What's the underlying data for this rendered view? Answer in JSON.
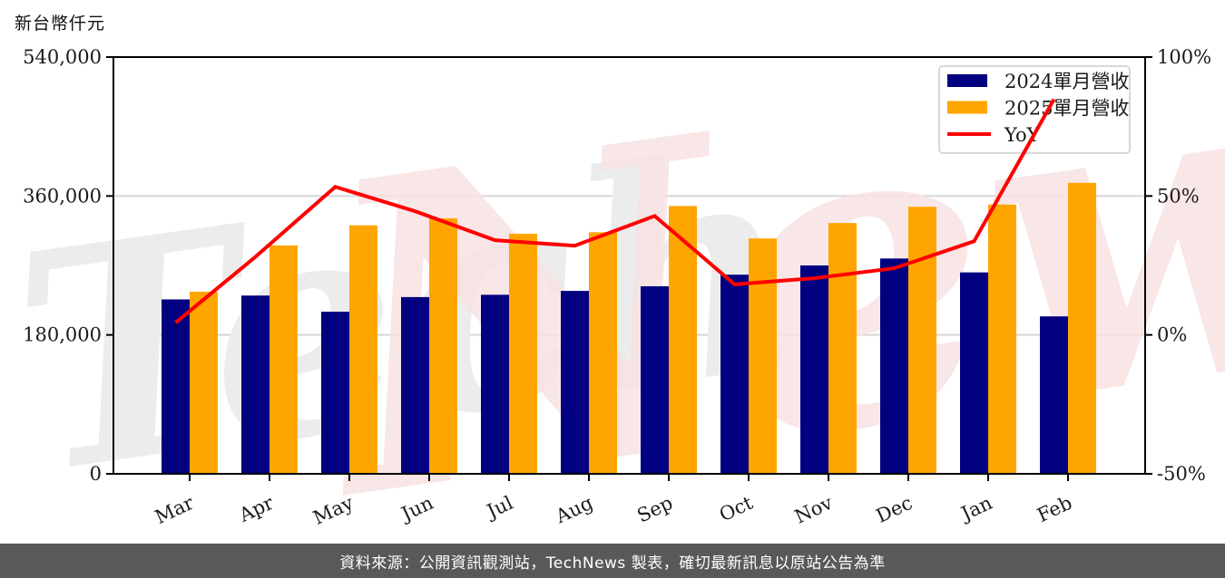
{
  "page": {
    "unit_label": "新台幣仟元",
    "footer_text": "資料來源：公開資訊觀測站，TechNews 製表，確切最新訊息以原站公告為準",
    "watermark": {
      "part1": "Tech",
      "part2": "News"
    }
  },
  "chart_data": {
    "type": "bar",
    "title": "",
    "categories": [
      "Mar",
      "Apr",
      "May",
      "Jun",
      "Jul",
      "Aug",
      "Sep",
      "Oct",
      "Nov",
      "Dec",
      "Jan",
      "Feb"
    ],
    "series": [
      {
        "name": "2024單月營收",
        "type": "bar",
        "color": "#000080",
        "axis": "left",
        "values": [
          226000,
          231000,
          210000,
          229000,
          232000,
          237000,
          243000,
          258000,
          270000,
          279000,
          261000,
          204000
        ]
      },
      {
        "name": "2025單月營收",
        "type": "bar",
        "color": "#FFA500",
        "axis": "left",
        "values": [
          236000,
          296000,
          322000,
          331000,
          311000,
          313000,
          347000,
          305000,
          325000,
          346000,
          349000,
          377000
        ]
      },
      {
        "name": "YoY",
        "type": "line",
        "color": "#FF0000",
        "axis": "right",
        "values": [
          4.4,
          28.1,
          53.3,
          44.5,
          34.1,
          32.1,
          42.8,
          18.2,
          20.4,
          24.0,
          33.7,
          84.8
        ]
      }
    ],
    "left_axis": {
      "label": "新台幣仟元",
      "min": 0,
      "max": 540000,
      "tick_labels_top_down": [
        "540,000",
        "360,000",
        "180,000",
        "0"
      ]
    },
    "right_axis": {
      "label": "",
      "min": -50,
      "max": 100,
      "tick_labels_top_down": [
        "100%",
        "50%",
        "0%",
        "-50%"
      ]
    },
    "legend_position": "top-right",
    "grid": "horizontal",
    "xlabel": "",
    "ylabel": "新台幣仟元"
  },
  "colors": {
    "grid": "#d6d6d6",
    "spine": "#000000",
    "tick_text": "#1a1a1a",
    "footer_bg": "#58595b",
    "legend_border": "#cccccc",
    "watermark_gray": "#ececec",
    "watermark_pink": "#f8e2e2"
  }
}
